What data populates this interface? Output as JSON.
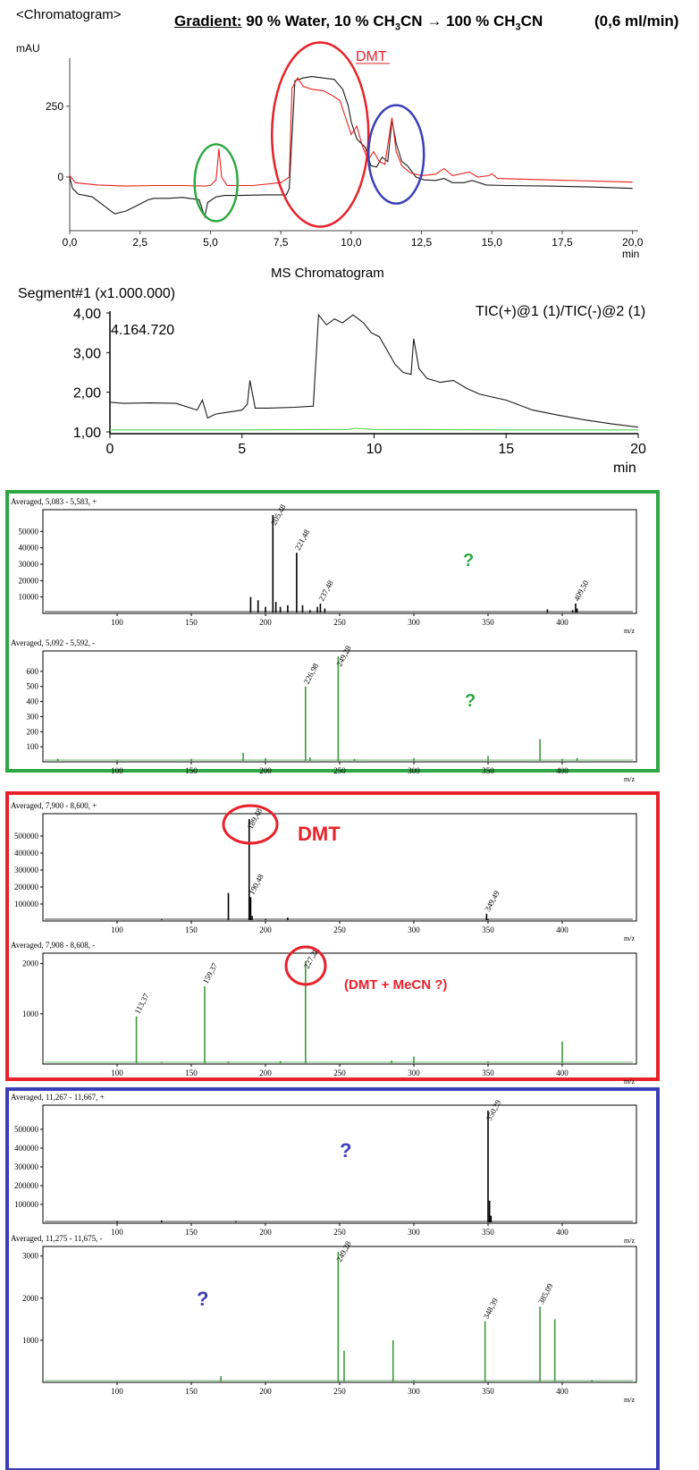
{
  "header": {
    "chromatogram_label": "<Chromatogram>",
    "gradient_label": "Gradient:",
    "gradient_text_1": "90 % Water, 10 % CH",
    "gradient_text_2": "CN",
    "gradient_text_3": "100 % CH",
    "gradient_text_4": "CN",
    "subscript": "3",
    "arrow": "→",
    "flow": "(0,6 ml/min)"
  },
  "colors": {
    "black_trace": "#1a1a1a",
    "red_trace": "#e8201e",
    "green_trace": "#3c9a3c",
    "tic_green": "#4cd64c",
    "green_box": "#2ea843",
    "red_box": "#e8222a",
    "blue_box": "#3a3fb8",
    "green_question": "#2ea843",
    "red_label": "#e8222a",
    "blue_question": "#3a3fb8"
  },
  "chart_data": [
    {
      "type": "line",
      "id": "uv-chromatogram",
      "ylabel": "mAU",
      "xlabel": "min",
      "xlim": [
        0,
        20.2
      ],
      "ylim": [
        -180,
        420
      ],
      "x_ticks": [
        "0,0",
        "2,5",
        "5,0",
        "7,5",
        "10,0",
        "12,5",
        "15,0",
        "17,5",
        "20,0"
      ],
      "x_tick_values": [
        0,
        2.5,
        5,
        7.5,
        10,
        12.5,
        15,
        17.5,
        20
      ],
      "y_ticks": [
        "250",
        "0"
      ],
      "y_tick_values": [
        250,
        0
      ],
      "annotation": "DMT",
      "series": [
        {
          "color": "black",
          "points": [
            [
              0,
              0
            ],
            [
              0.1,
              -40
            ],
            [
              0.3,
              -60
            ],
            [
              0.8,
              -70
            ],
            [
              1.2,
              -100
            ],
            [
              1.6,
              -130
            ],
            [
              2.0,
              -120
            ],
            [
              2.5,
              -95
            ],
            [
              2.8,
              -80
            ],
            [
              3.0,
              -75
            ],
            [
              3.5,
              -75
            ],
            [
              4.0,
              -72
            ],
            [
              4.6,
              -80
            ],
            [
              4.8,
              -140
            ],
            [
              4.9,
              -90
            ],
            [
              5.2,
              -70
            ],
            [
              5.5,
              -65
            ],
            [
              6.0,
              -65
            ],
            [
              7.0,
              -63
            ],
            [
              7.7,
              -63
            ],
            [
              7.8,
              -40
            ],
            [
              8.0,
              340
            ],
            [
              8.3,
              350
            ],
            [
              8.6,
              355
            ],
            [
              9.0,
              350
            ],
            [
              9.4,
              345
            ],
            [
              9.7,
              310
            ],
            [
              9.9,
              250
            ],
            [
              10.0,
              195
            ],
            [
              10.2,
              135
            ],
            [
              10.5,
              105
            ],
            [
              10.7,
              40
            ],
            [
              10.9,
              35
            ],
            [
              11.1,
              70
            ],
            [
              11.3,
              55
            ],
            [
              11.45,
              200
            ],
            [
              11.6,
              120
            ],
            [
              11.8,
              55
            ],
            [
              12.0,
              40
            ],
            [
              12.3,
              0
            ],
            [
              12.6,
              -10
            ],
            [
              13.0,
              -12
            ],
            [
              13.3,
              -5
            ],
            [
              13.6,
              -20
            ],
            [
              14.0,
              -20
            ],
            [
              14.3,
              -12
            ],
            [
              14.8,
              -28
            ],
            [
              15.5,
              -30
            ],
            [
              17.0,
              -32
            ],
            [
              18.5,
              -35
            ],
            [
              20.0,
              -40
            ]
          ]
        },
        {
          "color": "red",
          "points": [
            [
              0,
              5
            ],
            [
              0.2,
              -20
            ],
            [
              1.0,
              -28
            ],
            [
              2.0,
              -32
            ],
            [
              3.0,
              -30
            ],
            [
              4.0,
              -30
            ],
            [
              4.8,
              -32
            ],
            [
              5.0,
              -30
            ],
            [
              5.2,
              -10
            ],
            [
              5.3,
              100
            ],
            [
              5.4,
              0
            ],
            [
              5.6,
              -30
            ],
            [
              6.5,
              -30
            ],
            [
              7.5,
              -20
            ],
            [
              7.8,
              0
            ],
            [
              7.9,
              315
            ],
            [
              8.1,
              350
            ],
            [
              8.3,
              320
            ],
            [
              8.6,
              310
            ],
            [
              9.0,
              305
            ],
            [
              9.3,
              290
            ],
            [
              9.6,
              270
            ],
            [
              9.8,
              210
            ],
            [
              10.0,
              150
            ],
            [
              10.2,
              180
            ],
            [
              10.4,
              110
            ],
            [
              10.6,
              60
            ],
            [
              10.8,
              90
            ],
            [
              11.0,
              55
            ],
            [
              11.2,
              45
            ],
            [
              11.45,
              210
            ],
            [
              11.6,
              90
            ],
            [
              11.8,
              40
            ],
            [
              12.1,
              15
            ],
            [
              12.5,
              5
            ],
            [
              13.0,
              10
            ],
            [
              13.3,
              30
            ],
            [
              13.6,
              5
            ],
            [
              14.2,
              18
            ],
            [
              14.5,
              0
            ],
            [
              14.9,
              5
            ],
            [
              15.0,
              12
            ],
            [
              15.2,
              -5
            ],
            [
              17.0,
              -10
            ],
            [
              19.0,
              -15
            ],
            [
              20.0,
              -18
            ]
          ]
        }
      ]
    },
    {
      "type": "line",
      "id": "ms-tic",
      "title": "MS Chromatogram",
      "segment": "Segment#1 (x1.000.000)",
      "trace_label": "TIC(+)@1 (1)/TIC(-)@2 (1)",
      "max_value_label": "4.164.720",
      "xlabel": "min",
      "xlim": [
        0,
        20
      ],
      "ylim": [
        1.0,
        4.0
      ],
      "x_ticks": [
        "0",
        "5",
        "10",
        "15",
        "20"
      ],
      "x_tick_values": [
        0,
        5,
        10,
        15,
        20
      ],
      "y_ticks": [
        "4,00",
        "3,00",
        "2,00",
        "1,00"
      ],
      "y_tick_values": [
        4.0,
        3.0,
        2.0,
        1.0
      ],
      "series": [
        {
          "color": "black",
          "points": [
            [
              0,
              1.75
            ],
            [
              0.5,
              1.72
            ],
            [
              1.5,
              1.73
            ],
            [
              2.5,
              1.72
            ],
            [
              3.3,
              1.55
            ],
            [
              3.5,
              1.8
            ],
            [
              3.7,
              1.35
            ],
            [
              4.0,
              1.45
            ],
            [
              4.5,
              1.5
            ],
            [
              5.0,
              1.55
            ],
            [
              5.2,
              1.7
            ],
            [
              5.3,
              2.3
            ],
            [
              5.5,
              1.6
            ],
            [
              6.0,
              1.6
            ],
            [
              7.0,
              1.62
            ],
            [
              7.7,
              1.65
            ],
            [
              7.9,
              3.95
            ],
            [
              8.2,
              3.7
            ],
            [
              8.5,
              3.85
            ],
            [
              8.8,
              3.75
            ],
            [
              9.2,
              3.95
            ],
            [
              9.6,
              3.75
            ],
            [
              9.9,
              3.5
            ],
            [
              10.2,
              3.4
            ],
            [
              10.5,
              3.05
            ],
            [
              10.8,
              2.7
            ],
            [
              11.1,
              2.5
            ],
            [
              11.4,
              2.45
            ],
            [
              11.5,
              3.35
            ],
            [
              11.7,
              2.6
            ],
            [
              12.0,
              2.35
            ],
            [
              12.5,
              2.25
            ],
            [
              13.0,
              2.3
            ],
            [
              13.5,
              2.1
            ],
            [
              14.0,
              1.95
            ],
            [
              15.0,
              1.8
            ],
            [
              16.0,
              1.55
            ],
            [
              17.0,
              1.42
            ],
            [
              18.0,
              1.3
            ],
            [
              19.0,
              1.2
            ],
            [
              20.0,
              1.12
            ]
          ]
        },
        {
          "color": "green",
          "points": [
            [
              0,
              1.05
            ],
            [
              5,
              1.05
            ],
            [
              9,
              1.06
            ],
            [
              9.3,
              1.09
            ],
            [
              10,
              1.06
            ],
            [
              15,
              1.05
            ],
            [
              20,
              1.05
            ]
          ]
        }
      ]
    },
    {
      "type": "bar",
      "id": "ms-green-pos",
      "title": "Averaged, 5,083 - 5,583, +",
      "xlabel": "m/z",
      "xlim": [
        50,
        450
      ],
      "ylim": [
        0,
        60000
      ],
      "x_ticks": [
        "100",
        "150",
        "200",
        "250",
        "300",
        "350",
        "400"
      ],
      "y_ticks": [
        "50000",
        "40000",
        "30000",
        "20000",
        "10000"
      ],
      "note": "?",
      "peaks": [
        [
          190,
          10000
        ],
        [
          195,
          8000
        ],
        [
          200,
          4000
        ],
        [
          205,
          60000
        ],
        [
          207,
          7000
        ],
        [
          210,
          4000
        ],
        [
          215,
          5000
        ],
        [
          221,
          37000
        ],
        [
          225,
          5000
        ],
        [
          230,
          2000
        ],
        [
          235,
          4000
        ],
        [
          237,
          6000
        ],
        [
          240,
          3000
        ],
        [
          390,
          2500
        ],
        [
          407,
          2000
        ],
        [
          409,
          6000
        ],
        [
          410,
          3000
        ]
      ],
      "labels": [
        {
          "mz": 205,
          "text": "205,48"
        },
        {
          "mz": 221,
          "text": "221,48"
        },
        {
          "mz": 237,
          "text": "237,48"
        },
        {
          "mz": 409,
          "text": "409,50"
        }
      ]
    },
    {
      "type": "bar",
      "id": "ms-green-neg",
      "title": "Averaged, 5,092 - 5,592, -",
      "xlabel": "m/z",
      "xlim": [
        50,
        450
      ],
      "ylim": [
        0,
        700
      ],
      "x_ticks": [
        "100",
        "150",
        "200",
        "250",
        "300",
        "350",
        "400"
      ],
      "y_ticks": [
        "600",
        "500",
        "400",
        "300",
        "200",
        "100"
      ],
      "note": "?",
      "peaks": [
        [
          60,
          20
        ],
        [
          100,
          15
        ],
        [
          150,
          20
        ],
        [
          185,
          60
        ],
        [
          200,
          25
        ],
        [
          227,
          500
        ],
        [
          230,
          30
        ],
        [
          249,
          700
        ],
        [
          260,
          20
        ],
        [
          300,
          25
        ],
        [
          350,
          40
        ],
        [
          385,
          150
        ],
        [
          400,
          20
        ],
        [
          410,
          25
        ]
      ],
      "labels": [
        {
          "mz": 227,
          "text": "226,98"
        },
        {
          "mz": 249,
          "text": "249,28"
        }
      ]
    },
    {
      "type": "bar",
      "id": "ms-red-pos",
      "title": "Averaged, 7,900 - 8,600, +",
      "xlabel": "m/z",
      "xlim": [
        50,
        450
      ],
      "ylim": [
        0,
        600000
      ],
      "x_ticks": [
        "100",
        "150",
        "200",
        "250",
        "300",
        "350",
        "400"
      ],
      "y_ticks": [
        "500000",
        "400000",
        "300000",
        "200000",
        "100000"
      ],
      "note": "DMT",
      "peaks": [
        [
          130,
          8000
        ],
        [
          150,
          5000
        ],
        [
          175,
          165000
        ],
        [
          189,
          600000
        ],
        [
          190,
          140000
        ],
        [
          191,
          30000
        ],
        [
          200,
          12000
        ],
        [
          215,
          20000
        ],
        [
          349,
          42000
        ],
        [
          350,
          10000
        ]
      ],
      "labels": [
        {
          "mz": 189,
          "text": "189,48"
        },
        {
          "mz": 190,
          "text": "190,48"
        },
        {
          "mz": 349,
          "text": "349,49"
        }
      ]
    },
    {
      "type": "bar",
      "id": "ms-red-neg",
      "title": "Averaged, 7,908 - 8,608, -",
      "xlabel": "m/z",
      "xlim": [
        50,
        450
      ],
      "ylim": [
        0,
        2100
      ],
      "x_ticks": [
        "100",
        "150",
        "200",
        "250",
        "300",
        "350",
        "400"
      ],
      "y_ticks": [
        "2000",
        "1000"
      ],
      "note": "(DMT + MeCN ?)",
      "peaks": [
        [
          113,
          950
        ],
        [
          130,
          30
        ],
        [
          159,
          1550
        ],
        [
          175,
          50
        ],
        [
          210,
          60
        ],
        [
          227,
          2050
        ],
        [
          285,
          70
        ],
        [
          300,
          150
        ],
        [
          350,
          50
        ],
        [
          400,
          450
        ]
      ],
      "labels": [
        {
          "mz": 113,
          "text": "113,37"
        },
        {
          "mz": 159,
          "text": "159,37"
        },
        {
          "mz": 227,
          "text": "227,28"
        }
      ]
    },
    {
      "type": "bar",
      "id": "ms-blue-pos",
      "title": "Averaged, 11,267 - 11,667, +",
      "xlabel": "m/z",
      "xlim": [
        50,
        450
      ],
      "ylim": [
        0,
        600000
      ],
      "x_ticks": [
        "100",
        "150",
        "200",
        "250",
        "300",
        "350",
        "400"
      ],
      "y_ticks": [
        "500000",
        "400000",
        "300000",
        "200000",
        "100000"
      ],
      "note": "?",
      "peaks": [
        [
          100,
          12000
        ],
        [
          130,
          15000
        ],
        [
          180,
          10000
        ],
        [
          350,
          600000
        ],
        [
          351,
          120000
        ],
        [
          352,
          40000
        ]
      ],
      "labels": [
        {
          "mz": 350,
          "text": "350,39"
        }
      ]
    },
    {
      "type": "bar",
      "id": "ms-blue-neg",
      "title": "Averaged, 11,275 - 11,675, -",
      "xlabel": "m/z",
      "xlim": [
        50,
        450
      ],
      "ylim": [
        0,
        3100
      ],
      "x_ticks": [
        "100",
        "150",
        "200",
        "250",
        "300",
        "350",
        "400"
      ],
      "y_ticks": [
        "3000",
        "2000",
        "1000"
      ],
      "note": "?",
      "peaks": [
        [
          170,
          150
        ],
        [
          249,
          3100
        ],
        [
          253,
          750
        ],
        [
          286,
          1000
        ],
        [
          300,
          60
        ],
        [
          348,
          1450
        ],
        [
          385,
          1800
        ],
        [
          395,
          1500
        ],
        [
          420,
          60
        ]
      ],
      "labels": [
        {
          "mz": 249,
          "text": "249,28"
        },
        {
          "mz": 348,
          "text": "348,39"
        },
        {
          "mz": 385,
          "text": "385,09"
        }
      ]
    }
  ]
}
